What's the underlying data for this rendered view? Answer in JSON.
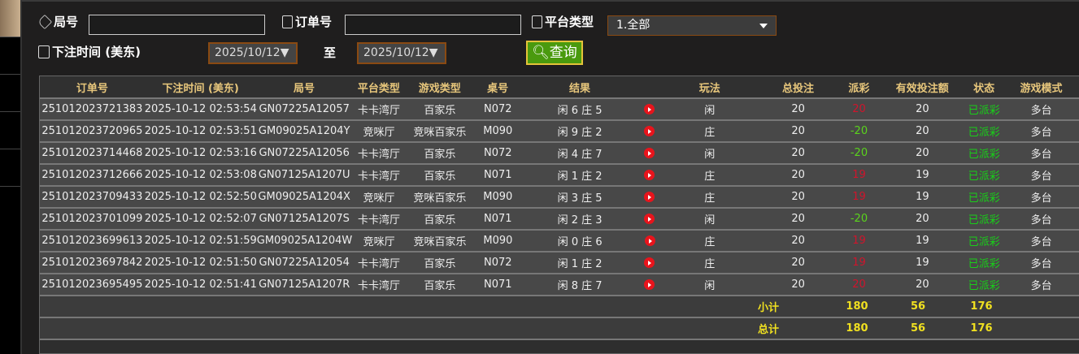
{
  "filters": {
    "round_label": "局号",
    "round_value": "",
    "order_label": "订单号",
    "order_value": "",
    "platform_label": "平台类型",
    "platform_value": "1.全部",
    "time_label": "下注时间 (美东)",
    "date_from": "2025/10/12▼",
    "to_label": "至",
    "date_to": "2025/10/12▼",
    "query_label": "查询"
  },
  "table": {
    "headers": [
      "订单号",
      "下注时间 (美东)",
      "局号",
      "平台类型",
      "游戏类型",
      "桌号",
      "结果",
      "",
      "玩法",
      "总投注",
      "派彩",
      "有效投注额",
      "状态",
      "游戏模式"
    ],
    "rows": [
      [
        "251012023721383",
        "2025-10-12 02:53:54",
        "GN07225A12057",
        "卡卡湾厅",
        "百家乐",
        "N072",
        "闲 6 庄 5",
        "闲",
        "20",
        "20",
        "20",
        "已派彩",
        "多台"
      ],
      [
        "251012023720965",
        "2025-10-12 02:53:51",
        "GM09025A1204Y",
        "竞咪厅",
        "竞咪百家乐",
        "M090",
        "闲 9 庄 2",
        "庄",
        "20",
        "-20",
        "20",
        "已派彩",
        "多台"
      ],
      [
        "251012023714468",
        "2025-10-12 02:53:16",
        "GN07225A12056",
        "卡卡湾厅",
        "百家乐",
        "N072",
        "闲 4 庄 7",
        "闲",
        "20",
        "-20",
        "20",
        "已派彩",
        "多台"
      ],
      [
        "251012023712666",
        "2025-10-12 02:53:08",
        "GN07125A1207U",
        "卡卡湾厅",
        "百家乐",
        "N071",
        "闲 1 庄 2",
        "庄",
        "20",
        "19",
        "19",
        "已派彩",
        "多台"
      ],
      [
        "251012023709433",
        "2025-10-12 02:52:50",
        "GM09025A1204X",
        "竞咪厅",
        "竞咪百家乐",
        "M090",
        "闲 3 庄 5",
        "庄",
        "20",
        "19",
        "19",
        "已派彩",
        "多台"
      ],
      [
        "251012023701099",
        "2025-10-12 02:52:07",
        "GN07125A1207S",
        "卡卡湾厅",
        "百家乐",
        "N071",
        "闲 2 庄 3",
        "闲",
        "20",
        "-20",
        "20",
        "已派彩",
        "多台"
      ],
      [
        "251012023699613",
        "2025-10-12 02:51:59",
        "GM09025A1204W",
        "竞咪厅",
        "竞咪百家乐",
        "M090",
        "闲 0 庄 6",
        "庄",
        "20",
        "19",
        "19",
        "已派彩",
        "多台"
      ],
      [
        "251012023697842",
        "2025-10-12 02:51:50",
        "GN07225A12054",
        "卡卡湾厅",
        "百家乐",
        "N072",
        "闲 1 庄 2",
        "庄",
        "20",
        "19",
        "19",
        "已派彩",
        "多台"
      ],
      [
        "251012023695495",
        "2025-10-12 02:51:41",
        "GN07125A1207R",
        "卡卡湾厅",
        "百家乐",
        "N071",
        "闲 8 庄 7",
        "闲",
        "20",
        "20",
        "20",
        "已派彩",
        "多台"
      ]
    ],
    "subtotal": {
      "label": "小计",
      "total_bet": "180",
      "payout": "56",
      "valid_bet": "176"
    },
    "total": {
      "label": "总计",
      "total_bet": "180",
      "payout": "56",
      "valid_bet": "176"
    }
  },
  "colors": {
    "payout_positive": "#d0142c",
    "payout_negative": "#5ad41c",
    "status": "#18d018",
    "header_text": "#e8c77c",
    "summary_text": "#f0e020",
    "query_button": "#4a9a0e"
  }
}
